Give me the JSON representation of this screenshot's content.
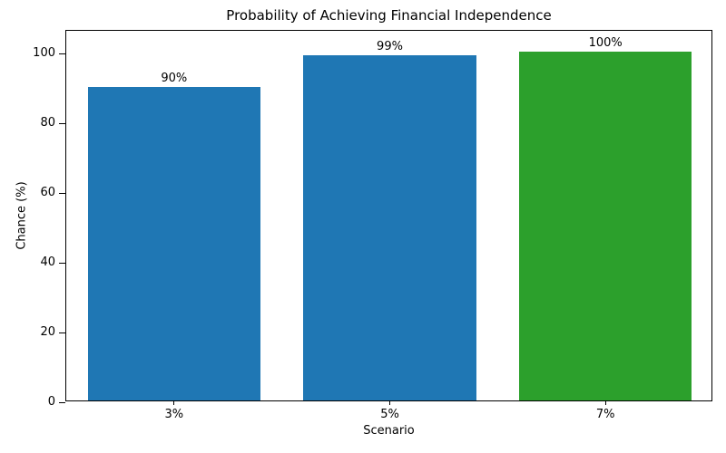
{
  "chart_data": {
    "type": "bar",
    "title": "Probability of Achieving Financial Independence",
    "xlabel": "Scenario",
    "ylabel": "Chance (%)",
    "categories": [
      "3%",
      "5%",
      "7%"
    ],
    "values": [
      90,
      99,
      100
    ],
    "bar_labels": [
      "90%",
      "99%",
      "100%"
    ],
    "bar_colors": [
      "#1f77b4",
      "#1f77b4",
      "#2ca02c"
    ],
    "yticks": [
      0,
      20,
      40,
      60,
      80,
      100
    ],
    "ylim": [
      0,
      106.5
    ],
    "bar_width_fraction": 0.8,
    "grid": "off",
    "legend": "none",
    "frame_color": "#000000",
    "background_color": "#ffffff"
  }
}
